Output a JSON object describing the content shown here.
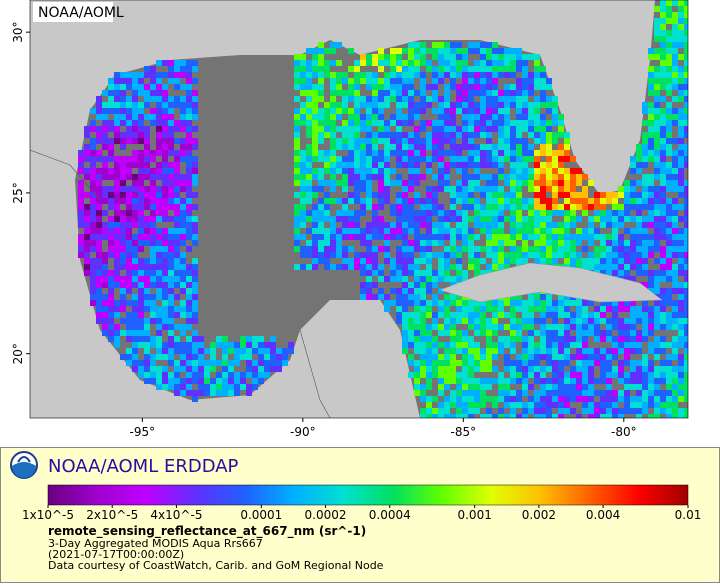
{
  "map": {
    "label": "NOAA/AOML",
    "xlim": [
      -98.5,
      -78
    ],
    "ylim": [
      18,
      31
    ],
    "xticks": [
      {
        "value": -95,
        "label": "-95°"
      },
      {
        "value": -90,
        "label": "-90°"
      },
      {
        "value": -85,
        "label": "-85°"
      },
      {
        "value": -80,
        "label": "-80°"
      }
    ],
    "yticks": [
      {
        "value": 20,
        "label": "20°"
      },
      {
        "value": 25,
        "label": "25°"
      },
      {
        "value": 30,
        "label": "30°"
      }
    ]
  },
  "legend": {
    "title": "NOAA/AOML ERDDAP",
    "colorbar": {
      "lim": [
        1e-05,
        0.01
      ],
      "log": true,
      "colors": [
        "#6a0080",
        "#a000d0",
        "#c000ff",
        "#6030ff",
        "#2060ff",
        "#00b0ff",
        "#00e0d0",
        "#00e060",
        "#60ff00",
        "#e0ff00",
        "#ffc000",
        "#ff6000",
        "#ff0000",
        "#a00000"
      ],
      "ticks": [
        {
          "value": 1e-05,
          "label": "1x10^-5"
        },
        {
          "value": 2e-05,
          "label": "2x10^-5"
        },
        {
          "value": 4e-05,
          "label": "4x10^-5"
        },
        0.0001,
        0.0002,
        0.0004,
        0.001,
        0.002,
        0.004,
        0.01
      ]
    },
    "variable": "remote_sensing_reflectance_at_667_nm (sr^-1)",
    "lines": [
      "3-Day Aggregated MODIS Aqua Rrs667",
      "(2021-07-17T00:00:00Z)",
      "Data courtesy of CoastWatch, Carib. and GoM Regional Node"
    ]
  }
}
